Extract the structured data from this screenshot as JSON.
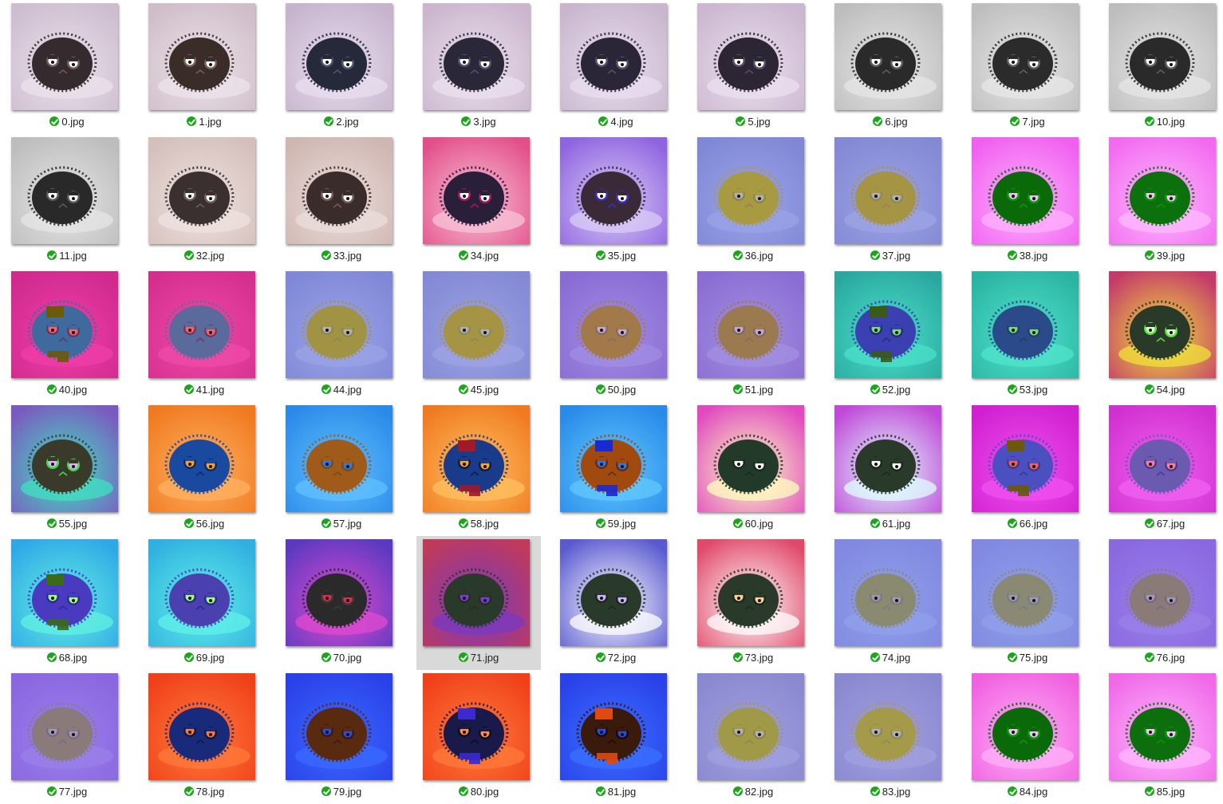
{
  "status_color": "#1aa51a",
  "selection_color": "#d9d9d9",
  "status_icon": "synced-check-icon",
  "selected_file": "71.jpg",
  "files": [
    {
      "name": "0.jpg",
      "bg": "#cdbdcf",
      "glow": "#ebe1ec",
      "body": "#352b2e",
      "ring": "#6e5b5c",
      "eye": "#ffffff",
      "extra": ""
    },
    {
      "name": "1.jpg",
      "bg": "#cfbdc8",
      "glow": "#ece3ea",
      "body": "#3a2c29",
      "ring": "#7a6055",
      "eye": "#ffffff",
      "extra": ""
    },
    {
      "name": "2.jpg",
      "bg": "#c6b4cd",
      "glow": "#e8ddee",
      "body": "#26293a",
      "ring": "#4d5773",
      "eye": "#ffffff",
      "extra": ""
    },
    {
      "name": "3.jpg",
      "bg": "#cbb6cd",
      "glow": "#ebdfee",
      "body": "#2a2838",
      "ring": "#565070",
      "eye": "#ffffff",
      "extra": ""
    },
    {
      "name": "4.jpg",
      "bg": "#c9b6cd",
      "glow": "#e9def0",
      "body": "#2a2638",
      "ring": "#555070",
      "eye": "#ffffff",
      "extra": ""
    },
    {
      "name": "5.jpg",
      "bg": "#cbb7cf",
      "glow": "#ebe0ef",
      "body": "#2c2534",
      "ring": "#5a4d68",
      "eye": "#ffffff",
      "extra": ""
    },
    {
      "name": "6.jpg",
      "bg": "#bdbdbd",
      "glow": "#e6e6e6",
      "body": "#2a2a2a",
      "ring": "#5e5e5e",
      "eye": "#ffffff",
      "extra": ""
    },
    {
      "name": "7.jpg",
      "bg": "#bebebe",
      "glow": "#e7e7e7",
      "body": "#2b2b2b",
      "ring": "#606060",
      "eye": "#ffffff",
      "extra": ""
    },
    {
      "name": "10.jpg",
      "bg": "#bdbdbd",
      "glow": "#e5e5e5",
      "body": "#2a2a2a",
      "ring": "#5e5e5e",
      "eye": "#ffffff",
      "extra": ""
    },
    {
      "name": "11.jpg",
      "bg": "#bdbdbd",
      "glow": "#e5e5e5",
      "body": "#292929",
      "ring": "#5a5a5a",
      "eye": "#ffffff",
      "extra": ""
    },
    {
      "name": "32.jpg",
      "bg": "#d4bfbb",
      "glow": "#eee2df",
      "body": "#3a3030",
      "ring": "#6f5e5b",
      "eye": "#ffffff",
      "extra": ""
    },
    {
      "name": "33.jpg",
      "bg": "#cfb6b1",
      "glow": "#eaddda",
      "body": "#3a2c2a",
      "ring": "#755b55",
      "eye": "#ffffff",
      "extra": ""
    },
    {
      "name": "34.jpg",
      "bg": "#e34f8a",
      "glow": "#f8c3d6",
      "body": "#2a1f3a",
      "ring": "#b0165a",
      "eye": "#ffffff",
      "extra": ""
    },
    {
      "name": "35.jpg",
      "bg": "#8f64e0",
      "glow": "#d9ccf7",
      "body": "#3a2a38",
      "ring": "#3a2bd0",
      "eye": "#ffffff",
      "extra": ""
    },
    {
      "name": "36.jpg",
      "bg": "#7f88d6",
      "glow": "#9aa3e6",
      "body": "#a89a40",
      "ring": "#8d8748",
      "eye": "#b5b0b8",
      "extra": ""
    },
    {
      "name": "37.jpg",
      "bg": "#8389d3",
      "glow": "#9da3e4",
      "body": "#a49444",
      "ring": "#8c8a55",
      "eye": "#b3aeb8",
      "extra": ""
    },
    {
      "name": "38.jpg",
      "bg": "#f05ff0",
      "glow": "#ffb0ff",
      "body": "#0a6a0a",
      "ring": "#0a9a0a",
      "eye": "#f0c0f0",
      "extra": ""
    },
    {
      "name": "39.jpg",
      "bg": "#f26af0",
      "glow": "#ffb9ff",
      "body": "#0c700c",
      "ring": "#0a960a",
      "eye": "#f2c4f0",
      "extra": ""
    },
    {
      "name": "40.jpg",
      "bg": "#cf2a8e",
      "glow": "#f03ea8",
      "body": "#3e6a9e",
      "ring": "#5a3a6a",
      "eye": "#ff6060",
      "extra": "#6a5a0a"
    },
    {
      "name": "41.jpg",
      "bg": "#d42e8f",
      "glow": "#f04aa8",
      "body": "#5a6a9a",
      "ring": "#6a3a6a",
      "eye": "#ff6060",
      "extra": ""
    },
    {
      "name": "44.jpg",
      "bg": "#7f88d6",
      "glow": "#9aa3e6",
      "body": "#a09444",
      "ring": "#8d8748",
      "eye": "#b5b0b8",
      "extra": ""
    },
    {
      "name": "45.jpg",
      "bg": "#8389d3",
      "glow": "#9da3e4",
      "body": "#a49444",
      "ring": "#8c8a55",
      "eye": "#b3aeb8",
      "extra": ""
    },
    {
      "name": "50.jpg",
      "bg": "#8a6ad3",
      "glow": "#a08ee3",
      "body": "#a27a4a",
      "ring": "#8a6a5a",
      "eye": "#c0a8d8",
      "extra": ""
    },
    {
      "name": "51.jpg",
      "bg": "#8b6cd2",
      "glow": "#a290e2",
      "body": "#9a7a4e",
      "ring": "#866a5a",
      "eye": "#c0a8d8",
      "extra": ""
    },
    {
      "name": "52.jpg",
      "bg": "#2aa8a0",
      "glow": "#4ae0c8",
      "body": "#3a40b0",
      "ring": "#2a2a7a",
      "eye": "#70e070",
      "extra": "#3a5a1a"
    },
    {
      "name": "53.jpg",
      "bg": "#2ab4a2",
      "glow": "#50e4cc",
      "body": "#2a4a8a",
      "ring": "#2a3a6a",
      "eye": "#70e070",
      "extra": ""
    },
    {
      "name": "54.jpg",
      "bg": "#c43a6a",
      "glow": "#f0e03a",
      "body": "#2a3a28",
      "ring": "#58e03a",
      "eye": "#e0ffd0",
      "extra": ""
    },
    {
      "name": "55.jpg",
      "bg": "#7a5ac0",
      "glow": "#40e0c0",
      "body": "#3a3a2a",
      "ring": "#3ae040",
      "eye": "#e0b0ff",
      "extra": ""
    },
    {
      "name": "56.jpg",
      "bg": "#f07a20",
      "glow": "#ffb060",
      "body": "#1a4aa0",
      "ring": "#0a2a6a",
      "eye": "#ffa020",
      "extra": ""
    },
    {
      "name": "57.jpg",
      "bg": "#2a8ae8",
      "glow": "#60c0ff",
      "body": "#a05a1a",
      "ring": "#7a4a1a",
      "eye": "#2a7ae8",
      "extra": ""
    },
    {
      "name": "58.jpg",
      "bg": "#f07a20",
      "glow": "#ffc060",
      "body": "#1a3a8a",
      "ring": "#0a1a4a",
      "eye": "#ffa020",
      "extra": "#a01a2a"
    },
    {
      "name": "59.jpg",
      "bg": "#2a8ae8",
      "glow": "#60c8ff",
      "body": "#a04a10",
      "ring": "#6a2a10",
      "eye": "#2a7ae8",
      "extra": "#1a2ad0"
    },
    {
      "name": "60.jpg",
      "bg": "#e04ac0",
      "glow": "#ffffc0",
      "body": "#223a2a",
      "ring": "#1a2a1a",
      "eye": "#ffffff",
      "extra": ""
    },
    {
      "name": "61.jpg",
      "bg": "#c048d8",
      "glow": "#e0ffff",
      "body": "#2a3a2a",
      "ring": "#1a2a1a",
      "eye": "#ffffff",
      "extra": ""
    },
    {
      "name": "66.jpg",
      "bg": "#d020d0",
      "glow": "#f050f0",
      "body": "#4a50c0",
      "ring": "#3a3a8a",
      "eye": "#ff5a5a",
      "extra": "#6a5a0a"
    },
    {
      "name": "67.jpg",
      "bg": "#d030d0",
      "glow": "#f060f0",
      "body": "#6a5ab0",
      "ring": "#4a3a8a",
      "eye": "#ff7a9a",
      "extra": ""
    },
    {
      "name": "68.jpg",
      "bg": "#30a8e8",
      "glow": "#60f0e0",
      "body": "#4a3ac0",
      "ring": "#2a2a9a",
      "eye": "#a0ff70",
      "extra": "#3a6a1a"
    },
    {
      "name": "69.jpg",
      "bg": "#30b0e0",
      "glow": "#60f0e8",
      "body": "#4a40b0",
      "ring": "#2a2a8a",
      "eye": "#a0ff70",
      "extra": ""
    },
    {
      "name": "70.jpg",
      "bg": "#5a3ac0",
      "glow": "#e04ad0",
      "body": "#2a2a2a",
      "ring": "#3a3a3a",
      "eye": "#e02a4a",
      "extra": ""
    },
    {
      "name": "71.jpg",
      "bg": "#c03a5a",
      "glow": "#7a3ac0",
      "body": "#2a3a2a",
      "ring": "#2a2a1a",
      "eye": "#7a3ae0",
      "extra": ""
    },
    {
      "name": "72.jpg",
      "bg": "#5a5ad0",
      "glow": "#ffffff",
      "body": "#2a3a2a",
      "ring": "#1a2a1a",
      "eye": "#d0b0ff",
      "extra": ""
    },
    {
      "name": "73.jpg",
      "bg": "#e04a6a",
      "glow": "#ffffff",
      "body": "#2a3a2a",
      "ring": "#1a2a1a",
      "eye": "#ffd090",
      "extra": ""
    },
    {
      "name": "74.jpg",
      "bg": "#8088e0",
      "glow": "#90a0ea",
      "body": "#8a8a70",
      "ring": "#7a7a80",
      "eye": "#9a9ab0",
      "extra": ""
    },
    {
      "name": "75.jpg",
      "bg": "#8088e0",
      "glow": "#90a0ea",
      "body": "#8a8a74",
      "ring": "#7a7a82",
      "eye": "#9a9ab2",
      "extra": ""
    },
    {
      "name": "76.jpg",
      "bg": "#8a68e0",
      "glow": "#9a80ea",
      "body": "#8a7a78",
      "ring": "#7a6a80",
      "eye": "#a09ab8",
      "extra": ""
    },
    {
      "name": "77.jpg",
      "bg": "#8a66e0",
      "glow": "#9a80ea",
      "body": "#8a7a7a",
      "ring": "#7a6a80",
      "eye": "#a09ab8",
      "extra": ""
    },
    {
      "name": "78.jpg",
      "bg": "#f0401a",
      "glow": "#ff7a3a",
      "body": "#1a2a7a",
      "ring": "#0a1a4a",
      "eye": "#ff7a30",
      "extra": ""
    },
    {
      "name": "79.jpg",
      "bg": "#2a40e8",
      "glow": "#3a6aff",
      "body": "#5a2a10",
      "ring": "#3a1a0a",
      "eye": "#2a4ae8",
      "extra": ""
    },
    {
      "name": "80.jpg",
      "bg": "#f0401a",
      "glow": "#ff7a3a",
      "body": "#1a1a4a",
      "ring": "#0a0a2a",
      "eye": "#ff8a40",
      "extra": "#3a2ad0"
    },
    {
      "name": "81.jpg",
      "bg": "#2a40e8",
      "glow": "#3a70ff",
      "body": "#3a1a0a",
      "ring": "#1a0a0a",
      "eye": "#2a4ae8",
      "extra": "#e04a10"
    },
    {
      "name": "82.jpg",
      "bg": "#8a88d0",
      "glow": "#a0a0e0",
      "body": "#a09a48",
      "ring": "#8d8748",
      "eye": "#b5b0b8",
      "extra": ""
    },
    {
      "name": "83.jpg",
      "bg": "#8a88d0",
      "glow": "#a0a0e0",
      "body": "#a49a4a",
      "ring": "#8c8a55",
      "eye": "#b3aeb8",
      "extra": ""
    },
    {
      "name": "84.jpg",
      "bg": "#f060e0",
      "glow": "#ffb0f8",
      "body": "#0a6a0a",
      "ring": "#0a9a0a",
      "eye": "#f0c0f0",
      "extra": ""
    },
    {
      "name": "85.jpg",
      "bg": "#f068e8",
      "glow": "#ffb8ff",
      "body": "#0c6e0c",
      "ring": "#0a940a",
      "eye": "#f2c4f0",
      "extra": ""
    }
  ]
}
